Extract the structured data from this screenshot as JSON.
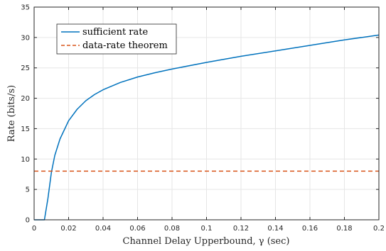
{
  "chart_data": {
    "type": "line",
    "xlabel": "Channel Delay Upperbound, γ (sec)",
    "ylabel": "Rate (bits/s)",
    "xlim": [
      0,
      0.2
    ],
    "ylim": [
      0,
      35
    ],
    "xticks": [
      "0",
      "0.02",
      "0.04",
      "0.06",
      "0.08",
      "0.1",
      "0.12",
      "0.14",
      "0.16",
      "0.18",
      "0.2"
    ],
    "yticks": [
      "0",
      "5",
      "10",
      "15",
      "20",
      "25",
      "30",
      "35"
    ],
    "grid": true,
    "legend_position": "top-left",
    "series": [
      {
        "name": "sufficient rate",
        "color": "#0072BD",
        "style": "solid",
        "x": [
          0,
          0.006,
          0.008,
          0.01,
          0.012,
          0.015,
          0.02,
          0.025,
          0.03,
          0.035,
          0.04,
          0.05,
          0.06,
          0.07,
          0.08,
          0.1,
          0.12,
          0.14,
          0.16,
          0.18,
          0.2
        ],
        "y": [
          0,
          0,
          3.5,
          7.8,
          10.6,
          13.3,
          16.3,
          18.2,
          19.6,
          20.6,
          21.4,
          22.6,
          23.5,
          24.2,
          24.8,
          25.9,
          26.9,
          27.8,
          28.7,
          29.6,
          30.4
        ]
      },
      {
        "name": "data-rate theorem",
        "color": "#D95319",
        "style": "dashed",
        "x": [
          0,
          0.2
        ],
        "y": [
          8,
          8
        ]
      }
    ]
  }
}
